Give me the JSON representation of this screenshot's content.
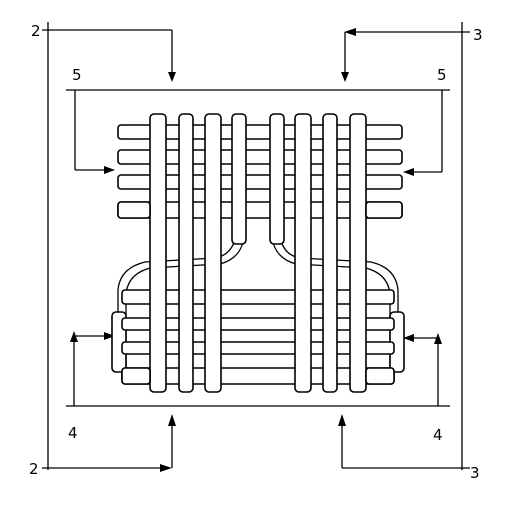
{
  "figure": {
    "section_labels": {
      "top_left": "2",
      "bottom_left": "2",
      "top_right": "3",
      "bottom_right": "3",
      "upper_left": "5",
      "upper_right": "5",
      "lower_left": "4",
      "lower_right": "4"
    },
    "colors": {
      "line": "#000000",
      "background": "#ffffff"
    }
  }
}
